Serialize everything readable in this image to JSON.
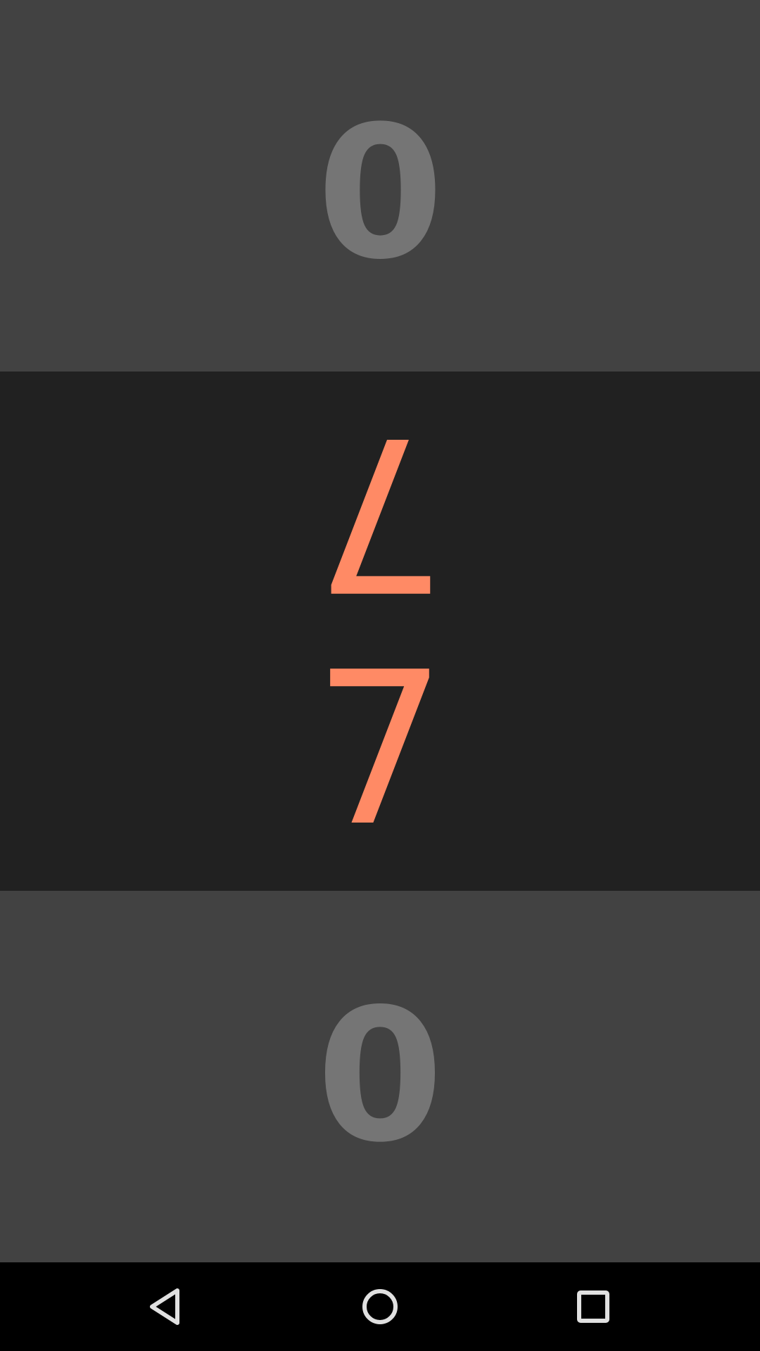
{
  "scores": {
    "top_player": "0",
    "middle_upper": "7",
    "middle_lower": "7",
    "bottom_player": "0"
  },
  "colors": {
    "panel_grey": "#424242",
    "panel_dark": "#212121",
    "score_grey": "#757575",
    "score_accent": "#FF8A65",
    "nav_bar": "#000000",
    "nav_icon": "#E0E0E0"
  },
  "nav": {
    "back_icon": "back-triangle-icon",
    "home_icon": "home-circle-icon",
    "recents_icon": "recents-square-icon"
  }
}
